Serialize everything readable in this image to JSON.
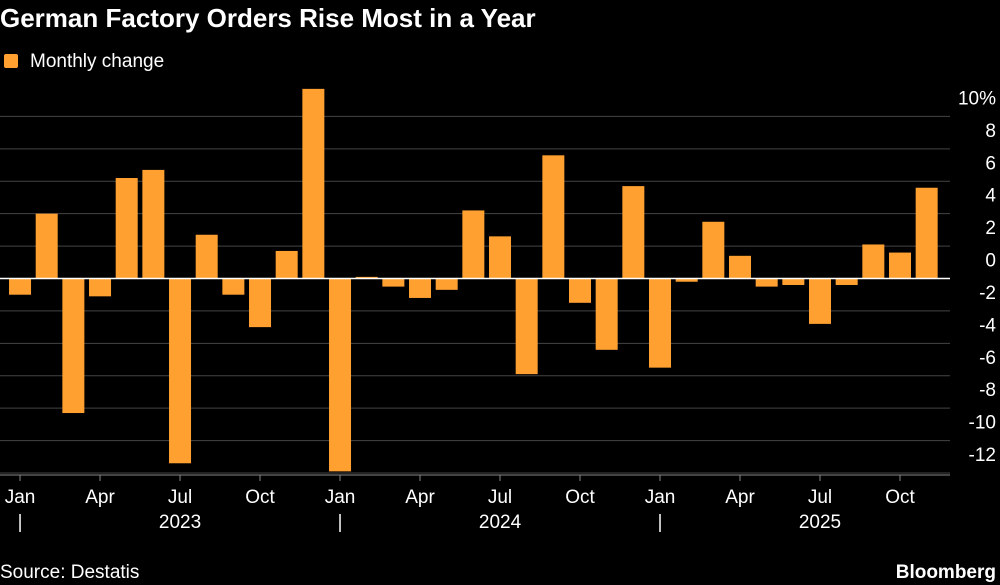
{
  "chart_data": {
    "type": "bar",
    "title": "German Factory Orders Rise Most in a Year",
    "source": "Source: Destatis",
    "brand": "Bloomberg",
    "series": [
      {
        "name": "Monthly change",
        "color": "#ffa031",
        "values": [
          -1.0,
          4.0,
          -8.3,
          -1.1,
          6.2,
          6.7,
          -11.4,
          2.7,
          -1.0,
          -3.0,
          1.7,
          11.7,
          -11.9,
          0.1,
          -0.5,
          -1.2,
          -0.7,
          4.2,
          2.6,
          -5.9,
          7.6,
          -1.5,
          -4.4,
          5.7,
          -5.5,
          -0.2,
          3.5,
          1.4,
          -0.5,
          -0.4,
          -2.8,
          -0.4,
          2.1,
          1.6,
          5.6
        ]
      }
    ],
    "categories": [
      "Jan",
      null,
      null,
      "Apr",
      null,
      null,
      "Jul",
      null,
      null,
      "Oct",
      null,
      null,
      "Jan",
      null,
      null,
      "Apr",
      null,
      null,
      "Jul",
      null,
      null,
      "Oct",
      null,
      null,
      "Jan",
      null,
      null,
      "Apr",
      null,
      null,
      "Jul",
      null,
      null,
      "Oct",
      null
    ],
    "years": [
      "2023",
      "2024",
      "2025"
    ],
    "ylim": [
      -12,
      12
    ],
    "yticks": [
      -12,
      -10,
      -8,
      -6,
      -4,
      -2,
      0,
      2,
      4,
      6,
      8,
      {
        "value": 10,
        "label": "10%"
      }
    ],
    "grid": true
  }
}
